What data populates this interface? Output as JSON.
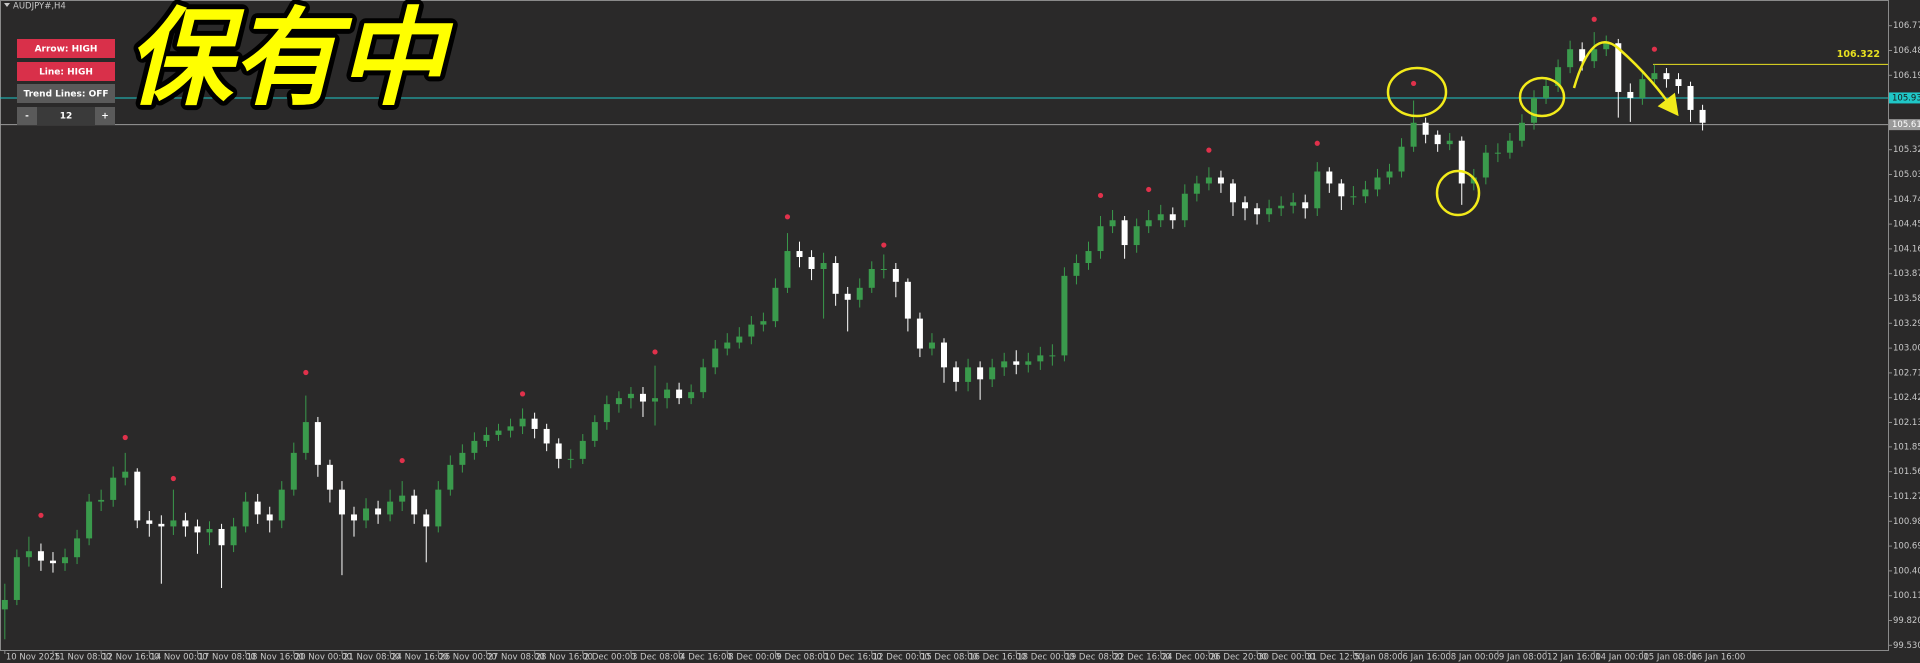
{
  "ui": {
    "symbol": "AUDJPY#,H4",
    "buttons": [
      "Arrow: HIGH",
      "Line: HIGH",
      "Trend Lines: OFF"
    ],
    "stepper": {
      "minus": "-",
      "value": 12,
      "plus": "+"
    },
    "overlay_text": "保有中"
  },
  "chart_data": {
    "type": "candlestick",
    "open": [
      99.95,
      100.06,
      100.56,
      100.63,
      100.52,
      100.49,
      100.56,
      100.78,
      101.21,
      101.23,
      101.49,
      101.56,
      100.99,
      100.95,
      100.92,
      100.99,
      100.92,
      100.85,
      100.89,
      100.7,
      100.92,
      101.21,
      101.06,
      100.99,
      101.35,
      101.78,
      102.14,
      101.64,
      101.35,
      101.06,
      100.99,
      101.13,
      101.06,
      101.21,
      101.28,
      101.06,
      100.92,
      101.35,
      101.64,
      101.78,
      101.92,
      101.99,
      102.04,
      102.09,
      102.18,
      102.06,
      101.89,
      101.71,
      101.71,
      101.92,
      102.14,
      102.35,
      102.42,
      102.47,
      102.38,
      102.42,
      102.52,
      102.42,
      102.49,
      102.78,
      103.0,
      103.07,
      103.14,
      103.28,
      103.32,
      103.71,
      104.14,
      104.07,
      103.93,
      104.0,
      103.64,
      103.57,
      103.71,
      103.93,
      103.93,
      103.78,
      103.35,
      103.0,
      103.07,
      102.78,
      102.61,
      102.78,
      102.64,
      102.78,
      102.85,
      102.81,
      102.85,
      102.92,
      102.92,
      103.85,
      104.0,
      104.14,
      104.43,
      104.5,
      104.21,
      104.43,
      104.5,
      104.57,
      104.5,
      104.81,
      104.93,
      105.0,
      104.93,
      104.71,
      104.64,
      104.57,
      104.64,
      104.67,
      104.71,
      104.64,
      105.07,
      104.93,
      104.78,
      104.78,
      104.86,
      105.0,
      105.07,
      105.36,
      105.64,
      105.5,
      105.39,
      105.43,
      104.93,
      105.0,
      105.29,
      105.29,
      105.43,
      105.64,
      105.93,
      106.07,
      106.29,
      106.5,
      106.36,
      106.5,
      106.57,
      106.0,
      105.93,
      106.15,
      106.22,
      106.15,
      106.07,
      105.79
    ],
    "high": [
      100.25,
      100.65,
      100.8,
      100.72,
      100.62,
      100.66,
      100.88,
      101.3,
      101.35,
      101.62,
      101.78,
      101.6,
      101.1,
      101.05,
      101.35,
      101.08,
      101.0,
      100.98,
      100.95,
      101.02,
      101.32,
      101.3,
      101.15,
      101.45,
      101.9,
      102.45,
      102.2,
      101.7,
      101.45,
      101.15,
      101.25,
      101.22,
      101.35,
      101.45,
      101.35,
      101.12,
      101.45,
      101.75,
      101.88,
      102.02,
      102.08,
      102.12,
      102.18,
      102.3,
      102.25,
      102.12,
      101.95,
      101.82,
      102.0,
      102.22,
      102.45,
      102.5,
      102.55,
      102.55,
      102.8,
      102.6,
      102.6,
      102.58,
      102.88,
      103.1,
      103.18,
      103.25,
      103.38,
      103.42,
      103.82,
      104.35,
      104.25,
      104.15,
      104.12,
      104.08,
      103.72,
      103.82,
      104.02,
      104.1,
      104.0,
      103.82,
      103.42,
      103.18,
      103.12,
      102.85,
      102.88,
      102.85,
      102.88,
      102.95,
      102.98,
      102.95,
      103.02,
      103.05,
      103.95,
      104.1,
      104.25,
      104.55,
      104.62,
      104.55,
      104.52,
      104.62,
      104.68,
      104.65,
      104.92,
      105.02,
      105.12,
      105.08,
      104.98,
      104.78,
      104.7,
      104.74,
      104.78,
      104.82,
      104.8,
      105.18,
      105.12,
      104.98,
      104.9,
      104.96,
      105.1,
      105.16,
      105.46,
      105.9,
      105.7,
      105.55,
      105.52,
      105.48,
      105.1,
      105.38,
      105.4,
      105.52,
      105.74,
      106.02,
      106.16,
      106.38,
      106.6,
      106.58,
      106.7,
      106.66,
      106.62,
      106.1,
      106.25,
      106.32,
      106.28,
      106.22,
      106.12,
      105.85
    ],
    "low": [
      99.6,
      100.0,
      100.45,
      100.4,
      100.38,
      100.4,
      100.48,
      100.7,
      101.1,
      101.15,
      101.4,
      100.9,
      100.8,
      100.25,
      100.82,
      100.8,
      100.6,
      100.7,
      100.2,
      100.62,
      100.85,
      100.95,
      100.85,
      100.9,
      101.28,
      101.7,
      101.5,
      101.2,
      100.35,
      100.8,
      100.9,
      100.95,
      100.98,
      101.1,
      100.95,
      100.5,
      100.85,
      101.28,
      101.55,
      101.7,
      101.85,
      101.92,
      101.96,
      102.0,
      101.95,
      101.8,
      101.6,
      101.6,
      101.65,
      101.85,
      102.05,
      102.25,
      102.3,
      102.2,
      102.1,
      102.3,
      102.35,
      102.35,
      102.42,
      102.7,
      102.92,
      103.0,
      103.05,
      103.2,
      103.25,
      103.65,
      103.95,
      103.8,
      103.35,
      103.5,
      103.2,
      103.48,
      103.65,
      103.82,
      103.6,
      103.2,
      102.9,
      102.92,
      102.6,
      102.5,
      102.5,
      102.4,
      102.55,
      102.68,
      102.7,
      102.72,
      102.75,
      102.8,
      102.85,
      103.75,
      103.92,
      104.05,
      104.35,
      104.05,
      104.12,
      104.35,
      104.42,
      104.4,
      104.42,
      104.72,
      104.85,
      104.82,
      104.55,
      104.5,
      104.45,
      104.48,
      104.55,
      104.58,
      104.52,
      104.55,
      104.82,
      104.62,
      104.68,
      104.7,
      104.78,
      104.92,
      105.0,
      105.3,
      105.4,
      105.3,
      105.32,
      104.68,
      104.85,
      104.92,
      105.18,
      105.22,
      105.36,
      105.56,
      105.86,
      106.0,
      106.22,
      106.25,
      106.28,
      106.42,
      105.7,
      105.65,
      105.85,
      106.08,
      106.05,
      105.98,
      105.65,
      105.55
    ],
    "close": [
      100.06,
      100.56,
      100.63,
      100.52,
      100.49,
      100.56,
      100.78,
      101.21,
      101.23,
      101.49,
      101.56,
      100.99,
      100.95,
      100.92,
      100.99,
      100.92,
      100.85,
      100.89,
      100.7,
      100.92,
      101.21,
      101.06,
      100.99,
      101.35,
      101.78,
      102.14,
      101.64,
      101.35,
      101.06,
      100.99,
      101.13,
      101.06,
      101.21,
      101.28,
      101.06,
      100.92,
      101.35,
      101.64,
      101.78,
      101.92,
      101.99,
      102.04,
      102.09,
      102.18,
      102.06,
      101.89,
      101.71,
      101.71,
      101.92,
      102.14,
      102.35,
      102.42,
      102.47,
      102.38,
      102.42,
      102.52,
      102.42,
      102.49,
      102.78,
      103.0,
      103.07,
      103.14,
      103.28,
      103.32,
      103.71,
      104.14,
      104.07,
      103.93,
      104.0,
      103.64,
      103.57,
      103.71,
      103.93,
      103.93,
      103.78,
      103.35,
      103.0,
      103.07,
      102.78,
      102.61,
      102.78,
      102.64,
      102.78,
      102.85,
      102.81,
      102.85,
      102.92,
      102.92,
      103.85,
      104.0,
      104.14,
      104.43,
      104.5,
      104.21,
      104.43,
      104.5,
      104.57,
      104.5,
      104.81,
      104.93,
      105.0,
      104.93,
      104.71,
      104.64,
      104.57,
      104.64,
      104.67,
      104.71,
      104.64,
      105.07,
      104.93,
      104.78,
      104.78,
      104.86,
      105.0,
      105.07,
      105.36,
      105.64,
      105.5,
      105.39,
      105.43,
      104.93,
      105.0,
      105.29,
      105.29,
      105.43,
      105.64,
      105.93,
      106.07,
      106.29,
      106.5,
      106.36,
      106.5,
      106.57,
      106.0,
      105.93,
      106.15,
      106.22,
      106.15,
      106.07,
      105.79,
      105.64
    ],
    "xlim": [
      -0.4,
      156.4
    ],
    "xticks": [
      {
        "value": 0,
        "label": "10 Nov 2025"
      },
      {
        "value": 4,
        "label": "11 Nov 08:00"
      },
      {
        "value": 8,
        "label": "12 Nov 16:00"
      },
      {
        "value": 12,
        "label": "14 Nov 00:00"
      },
      {
        "value": 16,
        "label": "17 Nov 08:00"
      },
      {
        "value": 20,
        "label": "18 Nov 16:00"
      },
      {
        "value": 24,
        "label": "20 Nov 00:00"
      },
      {
        "value": 28,
        "label": "21 Nov 08:00"
      },
      {
        "value": 32,
        "label": "24 Nov 16:00"
      },
      {
        "value": 36,
        "label": "26 Nov 00:00"
      },
      {
        "value": 40,
        "label": "27 Nov 08:00"
      },
      {
        "value": 44,
        "label": "28 Nov 16:00"
      },
      {
        "value": 48,
        "label": "2 Dec 00:00"
      },
      {
        "value": 52,
        "label": "3 Dec 08:00"
      },
      {
        "value": 56,
        "label": "4 Dec 16:00"
      },
      {
        "value": 60,
        "label": "8 Dec 00:00"
      },
      {
        "value": 64,
        "label": "9 Dec 08:00"
      },
      {
        "value": 68,
        "label": "10 Dec 16:00"
      },
      {
        "value": 72,
        "label": "12 Dec 00:00"
      },
      {
        "value": 76,
        "label": "15 Dec 08:00"
      },
      {
        "value": 80,
        "label": "16 Dec 16:00"
      },
      {
        "value": 84,
        "label": "18 Dec 00:00"
      },
      {
        "value": 88,
        "label": "19 Dec 08:00"
      },
      {
        "value": 92,
        "label": "22 Dec 16:00"
      },
      {
        "value": 96,
        "label": "24 Dec 00:00"
      },
      {
        "value": 100,
        "label": "26 Dec 20:00"
      },
      {
        "value": 104,
        "label": "30 Dec 00:00"
      },
      {
        "value": 108,
        "label": "31 Dec 12:00"
      },
      {
        "value": 112,
        "label": "5 Jan 08:00"
      },
      {
        "value": 116,
        "label": "6 Jan 16:00"
      },
      {
        "value": 120,
        "label": "8 Jan 00:00"
      },
      {
        "value": 124,
        "label": "9 Jan 08:00"
      },
      {
        "value": 128,
        "label": "12 Jan 16:00"
      },
      {
        "value": 132,
        "label": "14 Jan 00:00"
      },
      {
        "value": 136,
        "label": "15 Jan 08:00"
      },
      {
        "value": 140,
        "label": "16 Jan 16:00"
      }
    ],
    "ylim": [
      99.475,
      107.052
    ],
    "yticks": [
      106.775,
      106.485,
      106.195,
      105.325,
      105.035,
      104.745,
      104.455,
      104.165,
      103.875,
      103.585,
      103.295,
      103.005,
      102.715,
      102.425,
      102.135,
      {
        "value": 101.85,
        "label": "101.850"
      },
      {
        "value": 101.56,
        "label": "101.560"
      },
      {
        "value": 101.27,
        "label": "101.270"
      },
      {
        "value": 100.98,
        "label": "100.980"
      },
      {
        "value": 100.69,
        "label": "100.690"
      },
      {
        "value": 100.4,
        "label": "100.400"
      },
      {
        "value": 100.11,
        "label": "100.110"
      },
      {
        "value": 99.82,
        "label": "99.820"
      },
      {
        "value": 99.53,
        "label": "99.530"
      }
    ],
    "up_color": "#3a9a4c",
    "down_color": "#ffffff",
    "arrows": {
      "x": [
        3,
        10,
        14,
        25,
        33,
        43,
        54,
        65,
        73,
        91,
        95,
        100,
        109,
        117,
        132,
        137
      ],
      "values": [
        101.05,
        101.96,
        101.48,
        102.72,
        101.69,
        102.47,
        102.96,
        104.54,
        104.21,
        104.79,
        104.86,
        105.32,
        105.4,
        106.1,
        106.85,
        106.5
      ],
      "color": "#e0314b"
    },
    "hlines": [
      {
        "value": 105.93,
        "label": "105.930",
        "color": "#1fc7c7"
      },
      {
        "value": 105.618,
        "label": "105.618",
        "color": "#9a9a9a"
      },
      {
        "value": 106.322,
        "label": "106.322",
        "color": "#e8e020"
      }
    ]
  }
}
